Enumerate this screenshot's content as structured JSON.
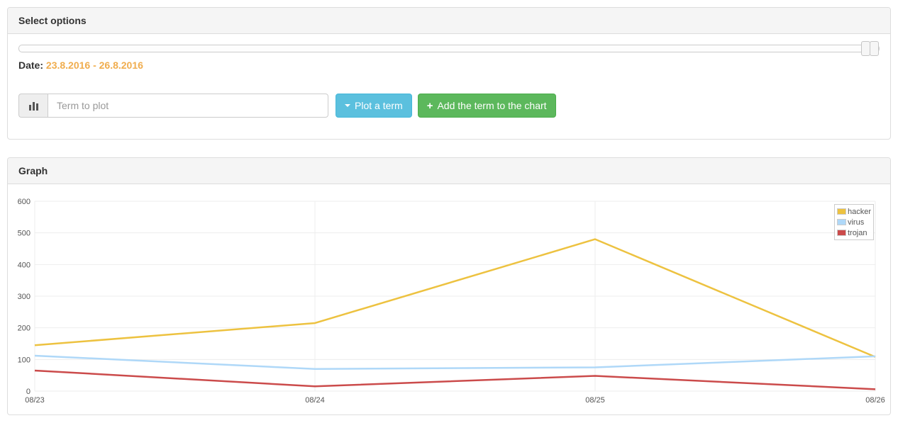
{
  "select_options": {
    "title": "Select options",
    "slider": {
      "handle_count": 2,
      "position": "right-end"
    },
    "date_label": "Date:",
    "date_value": "23.8.2016 - 26.8.2016",
    "term_input": {
      "placeholder": "Term to plot",
      "value": ""
    },
    "plot_button_label": "Plot a term",
    "add_button_label": "Add the term to the chart",
    "icons": {
      "bar_chart": "bar-chart-icon",
      "caret_down": "▾",
      "plus": "+"
    }
  },
  "graph_panel": {
    "title": "Graph"
  },
  "chart_data": {
    "type": "line",
    "x": [
      "08/23",
      "08/24",
      "08/25",
      "08/26"
    ],
    "series": [
      {
        "name": "hacker",
        "color": "#edc240",
        "values": [
          145,
          215,
          480,
          108
        ]
      },
      {
        "name": "virus",
        "color": "#afd8f8",
        "values": [
          112,
          70,
          75,
          110
        ]
      },
      {
        "name": "trojan",
        "color": "#cb4b4b",
        "values": [
          65,
          15,
          48,
          6
        ]
      }
    ],
    "title": "",
    "xlabel": "",
    "ylabel": "",
    "ylim": [
      0,
      600
    ],
    "yticks": [
      0,
      100,
      200,
      300,
      400,
      500,
      600
    ],
    "grid": true,
    "legend_position": "top-right"
  },
  "colors": {
    "accent_orange": "#f0ad4e",
    "info_button": "#5bc0de",
    "success_button": "#5cb85c",
    "panel_border": "#dddddd",
    "panel_heading_bg": "#f5f5f5",
    "axis_label": "#545454",
    "gridline": "#ededed"
  }
}
